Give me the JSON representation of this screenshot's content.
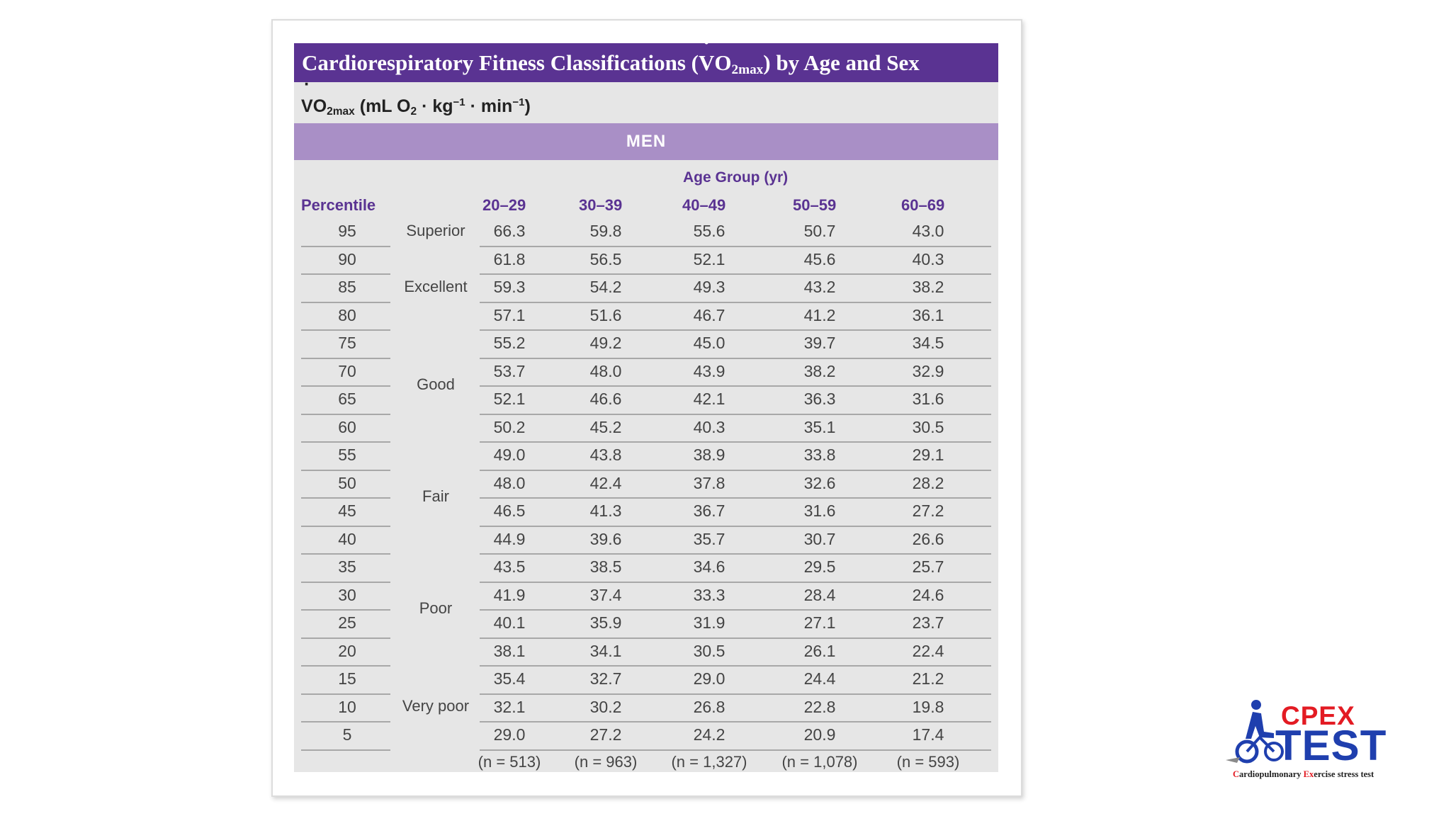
{
  "title": {
    "prefix": "Cardiorespiratory Fitness Classifications (",
    "v": "V",
    "o": "O",
    "sub": "2max",
    "suffix": ") by Age and Sex"
  },
  "units": {
    "v": "V",
    "o": "O",
    "sub": "2max",
    "open": " (mL O",
    "o2sub": "2",
    "kg": " · kg",
    "kgsup": "−1",
    "min": " · min",
    "minsup": "−1",
    "close": ")"
  },
  "section": "MEN",
  "age_group_label": "Age Group (yr)",
  "headers": {
    "percentile": "Percentile",
    "age_groups": [
      "20–29",
      "30–39",
      "40–49",
      "50–59",
      "60–69"
    ]
  },
  "rows": [
    {
      "percentile": "95",
      "values": [
        "66.3",
        "59.8",
        "55.6",
        "50.7",
        "43.0"
      ]
    },
    {
      "percentile": "90",
      "values": [
        "61.8",
        "56.5",
        "52.1",
        "45.6",
        "40.3"
      ]
    },
    {
      "percentile": "85",
      "values": [
        "59.3",
        "54.2",
        "49.3",
        "43.2",
        "38.2"
      ]
    },
    {
      "percentile": "80",
      "values": [
        "57.1",
        "51.6",
        "46.7",
        "41.2",
        "36.1"
      ]
    },
    {
      "percentile": "75",
      "values": [
        "55.2",
        "49.2",
        "45.0",
        "39.7",
        "34.5"
      ]
    },
    {
      "percentile": "70",
      "values": [
        "53.7",
        "48.0",
        "43.9",
        "38.2",
        "32.9"
      ]
    },
    {
      "percentile": "65",
      "values": [
        "52.1",
        "46.6",
        "42.1",
        "36.3",
        "31.6"
      ]
    },
    {
      "percentile": "60",
      "values": [
        "50.2",
        "45.2",
        "40.3",
        "35.1",
        "30.5"
      ]
    },
    {
      "percentile": "55",
      "values": [
        "49.0",
        "43.8",
        "38.9",
        "33.8",
        "29.1"
      ]
    },
    {
      "percentile": "50",
      "values": [
        "48.0",
        "42.4",
        "37.8",
        "32.6",
        "28.2"
      ]
    },
    {
      "percentile": "45",
      "values": [
        "46.5",
        "41.3",
        "36.7",
        "31.6",
        "27.2"
      ]
    },
    {
      "percentile": "40",
      "values": [
        "44.9",
        "39.6",
        "35.7",
        "30.7",
        "26.6"
      ]
    },
    {
      "percentile": "35",
      "values": [
        "43.5",
        "38.5",
        "34.6",
        "29.5",
        "25.7"
      ]
    },
    {
      "percentile": "30",
      "values": [
        "41.9",
        "37.4",
        "33.3",
        "28.4",
        "24.6"
      ]
    },
    {
      "percentile": "25",
      "values": [
        "40.1",
        "35.9",
        "31.9",
        "27.1",
        "23.7"
      ]
    },
    {
      "percentile": "20",
      "values": [
        "38.1",
        "34.1",
        "30.5",
        "26.1",
        "22.4"
      ]
    },
    {
      "percentile": "15",
      "values": [
        "35.4",
        "32.7",
        "29.0",
        "24.4",
        "21.2"
      ]
    },
    {
      "percentile": "10",
      "values": [
        "32.1",
        "30.2",
        "26.8",
        "22.8",
        "19.8"
      ]
    },
    {
      "percentile": "5",
      "values": [
        "29.0",
        "27.2",
        "24.2",
        "20.9",
        "17.4"
      ]
    }
  ],
  "classifications": [
    {
      "label": "Superior",
      "rows": [
        0,
        0
      ]
    },
    {
      "label": "Excellent",
      "rows": [
        1,
        3
      ]
    },
    {
      "label": "Good",
      "rows": [
        4,
        7
      ]
    },
    {
      "label": "Fair",
      "rows": [
        8,
        11
      ]
    },
    {
      "label": "Poor",
      "rows": [
        12,
        15
      ]
    },
    {
      "label": "Very poor",
      "rows": [
        16,
        18
      ]
    }
  ],
  "sample_sizes": [
    "(n = 513)",
    "(n = 963)",
    "(n = 1,327)",
    "(n = 1,078)",
    "(n = 593)"
  ],
  "logo": {
    "cpex": "CPEX",
    "test": "TEST",
    "tagline_c": "C",
    "tagline_1": "ardiopulmonary ",
    "tagline_e": "Ex",
    "tagline_2": "ercise stress test"
  },
  "colors": {
    "title_bar": "#5a3392",
    "men_band": "#a98fc6",
    "header_text": "#5a3392",
    "logo_red": "#e31b23",
    "logo_blue": "#1f3fae"
  }
}
